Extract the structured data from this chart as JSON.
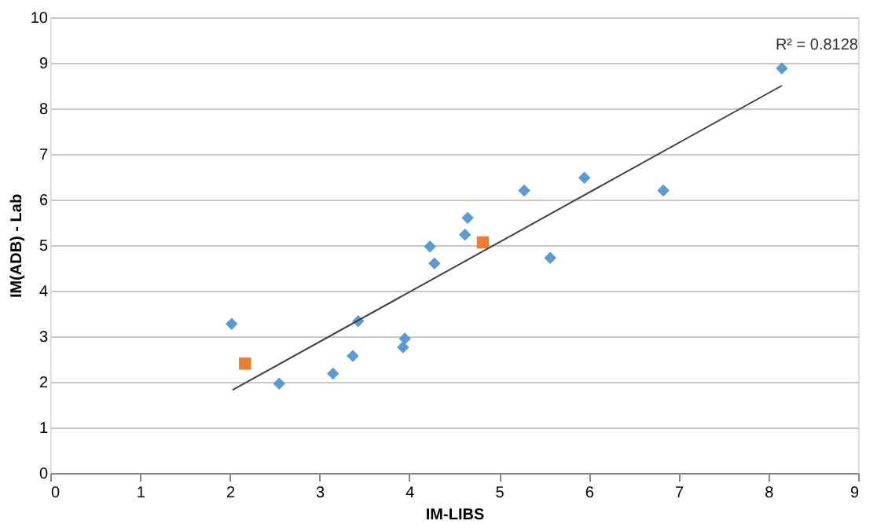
{
  "chart_data": {
    "type": "scatter",
    "xlabel": "IM-LIBS",
    "ylabel": "IM(ADB) - Lab",
    "xlim": [
      0,
      9
    ],
    "ylim": [
      0,
      10
    ],
    "xticks": [
      0,
      1,
      2,
      3,
      4,
      5,
      6,
      7,
      8,
      9
    ],
    "yticks": [
      0,
      1,
      2,
      3,
      4,
      5,
      6,
      7,
      8,
      9,
      10
    ],
    "grid": "y",
    "annotations": [
      "R² = 0.8128"
    ],
    "series": [
      {
        "marker": "diamond",
        "color": "#5b9bd5",
        "x": [
          2.02,
          2.55,
          3.15,
          3.37,
          3.43,
          3.93,
          3.95,
          4.23,
          4.28,
          4.62,
          4.65,
          5.28,
          5.57,
          5.95,
          6.83,
          8.15
        ],
        "values": [
          3.27,
          1.96,
          2.18,
          2.57,
          3.33,
          2.76,
          2.95,
          4.97,
          4.6,
          5.23,
          5.6,
          6.2,
          4.72,
          6.48,
          6.2,
          8.88
        ]
      },
      {
        "marker": "square",
        "color": "#ed7d31",
        "x": [
          2.17,
          4.82
        ],
        "values": [
          2.4,
          5.06
        ]
      },
      {
        "type": "line",
        "marker": "none",
        "color": "#404040",
        "x": [
          2.03,
          8.15
        ],
        "values": [
          1.82,
          8.5
        ]
      }
    ]
  }
}
